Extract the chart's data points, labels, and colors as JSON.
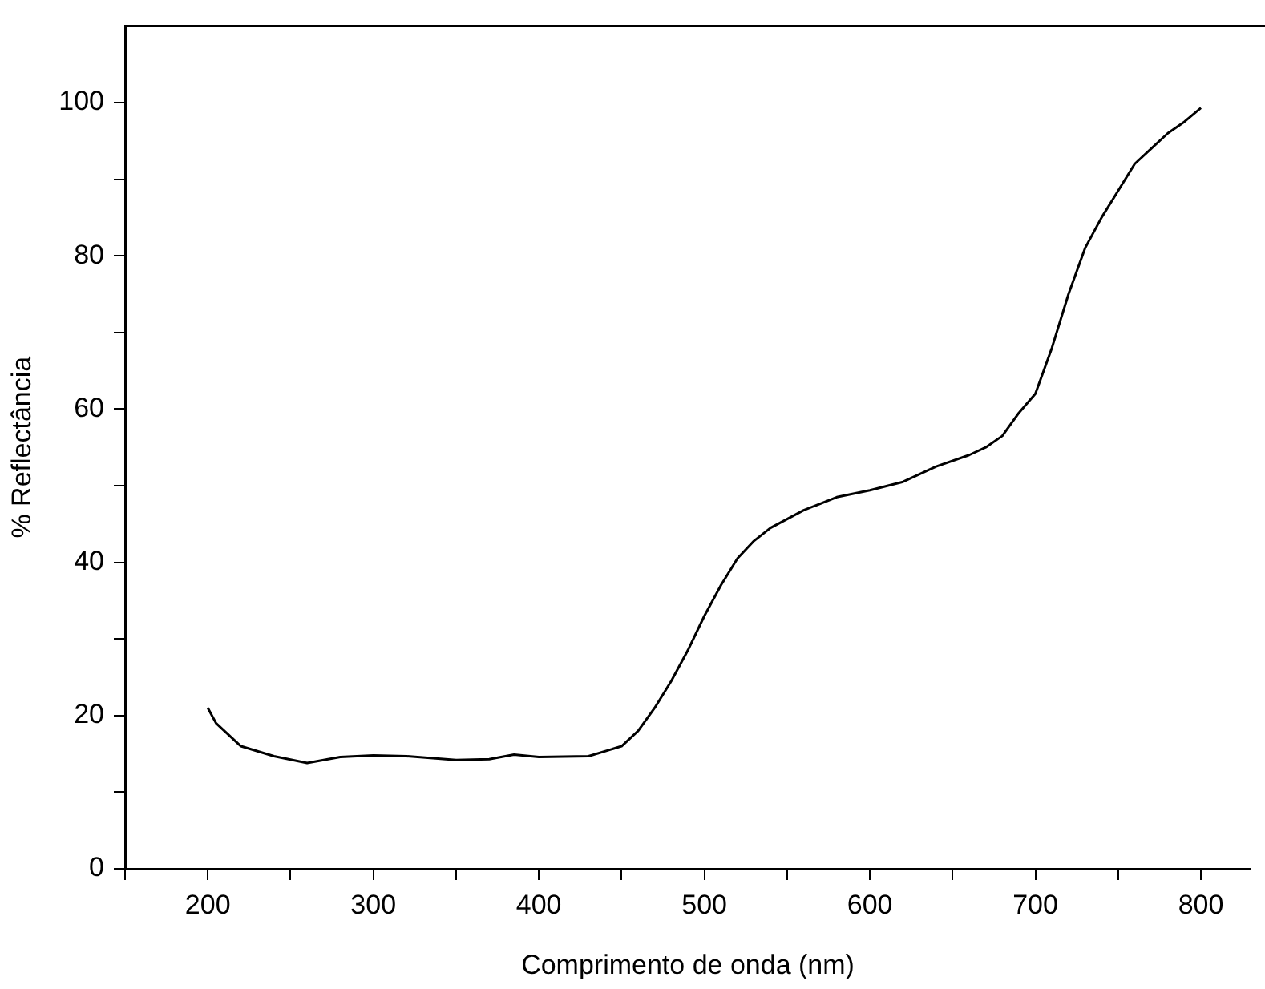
{
  "chart_data": {
    "type": "line",
    "xlabel": "Comprimento de onda (nm)",
    "ylabel": "% Reflectância",
    "xlim": [
      150,
      830
    ],
    "ylim": [
      0,
      110
    ],
    "xticks": [
      {
        "value": 150,
        "label": null
      },
      200,
      {
        "value": 250,
        "label": null
      },
      300,
      {
        "value": 350,
        "label": null
      },
      400,
      {
        "value": 450,
        "label": null
      },
      500,
      {
        "value": 550,
        "label": null
      },
      600,
      {
        "value": 650,
        "label": null
      },
      700,
      {
        "value": 750,
        "label": null
      },
      800
    ],
    "yticks": [
      0,
      {
        "value": 10,
        "label": null
      },
      20,
      {
        "value": 30,
        "label": null
      },
      40,
      {
        "value": 50,
        "label": null
      },
      60,
      {
        "value": 70,
        "label": null
      },
      80,
      {
        "value": 90,
        "label": null
      },
      100
    ],
    "grid": false,
    "legend": false,
    "marker": "none",
    "line_style": "solid",
    "series": [
      {
        "color": "#000000",
        "x": [
          200,
          205,
          220,
          240,
          260,
          280,
          300,
          320,
          350,
          370,
          385,
          400,
          430,
          450,
          460,
          470,
          480,
          490,
          500,
          510,
          520,
          530,
          540,
          560,
          580,
          600,
          620,
          640,
          660,
          670,
          680,
          690,
          700,
          710,
          720,
          730,
          740,
          750,
          760,
          770,
          780,
          790,
          800
        ],
        "values": [
          21,
          19,
          16,
          14.7,
          13.8,
          14.6,
          14.8,
          14.7,
          14.2,
          14.3,
          14.9,
          14.6,
          14.7,
          16,
          18,
          21,
          24.5,
          28.5,
          33,
          37,
          40.5,
          42.8,
          44.5,
          46.8,
          48.5,
          49.4,
          50.5,
          52.5,
          54,
          55,
          56.5,
          59.5,
          62,
          68,
          75,
          81,
          85,
          88.5,
          92,
          94,
          96,
          97.5,
          99.3
        ]
      }
    ]
  }
}
